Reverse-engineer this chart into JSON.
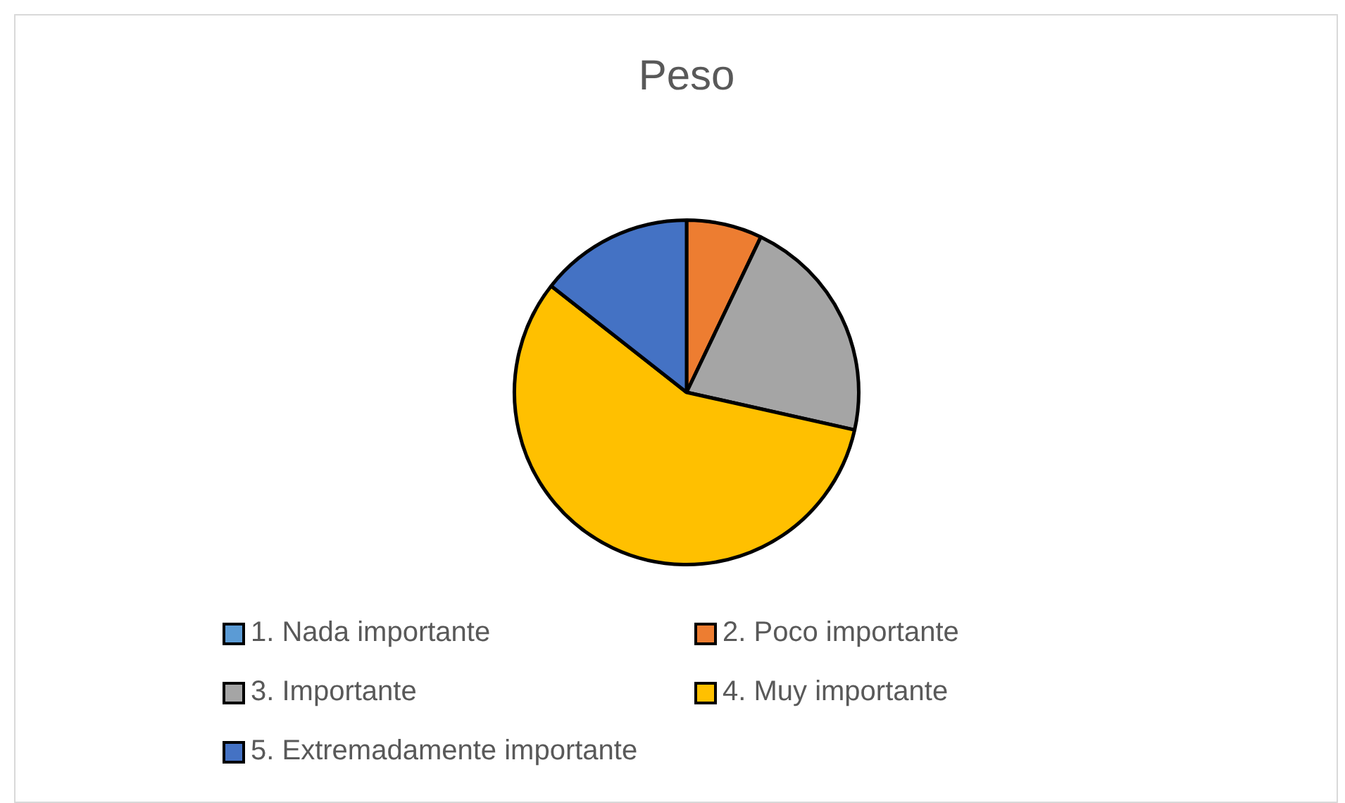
{
  "chart_data": {
    "type": "pie",
    "title": "Peso",
    "categories": [
      "1. Nada importante",
      "2. Poco importante",
      "3. Importante",
      "4. Muy importante",
      "5. Extremadamente importante"
    ],
    "values": [
      0,
      7.1,
      21.4,
      57.1,
      14.4
    ],
    "colors": [
      "#5b9bd5",
      "#ed7d31",
      "#a5a5a5",
      "#ffc000",
      "#4472c4"
    ],
    "legend": "bottom"
  }
}
